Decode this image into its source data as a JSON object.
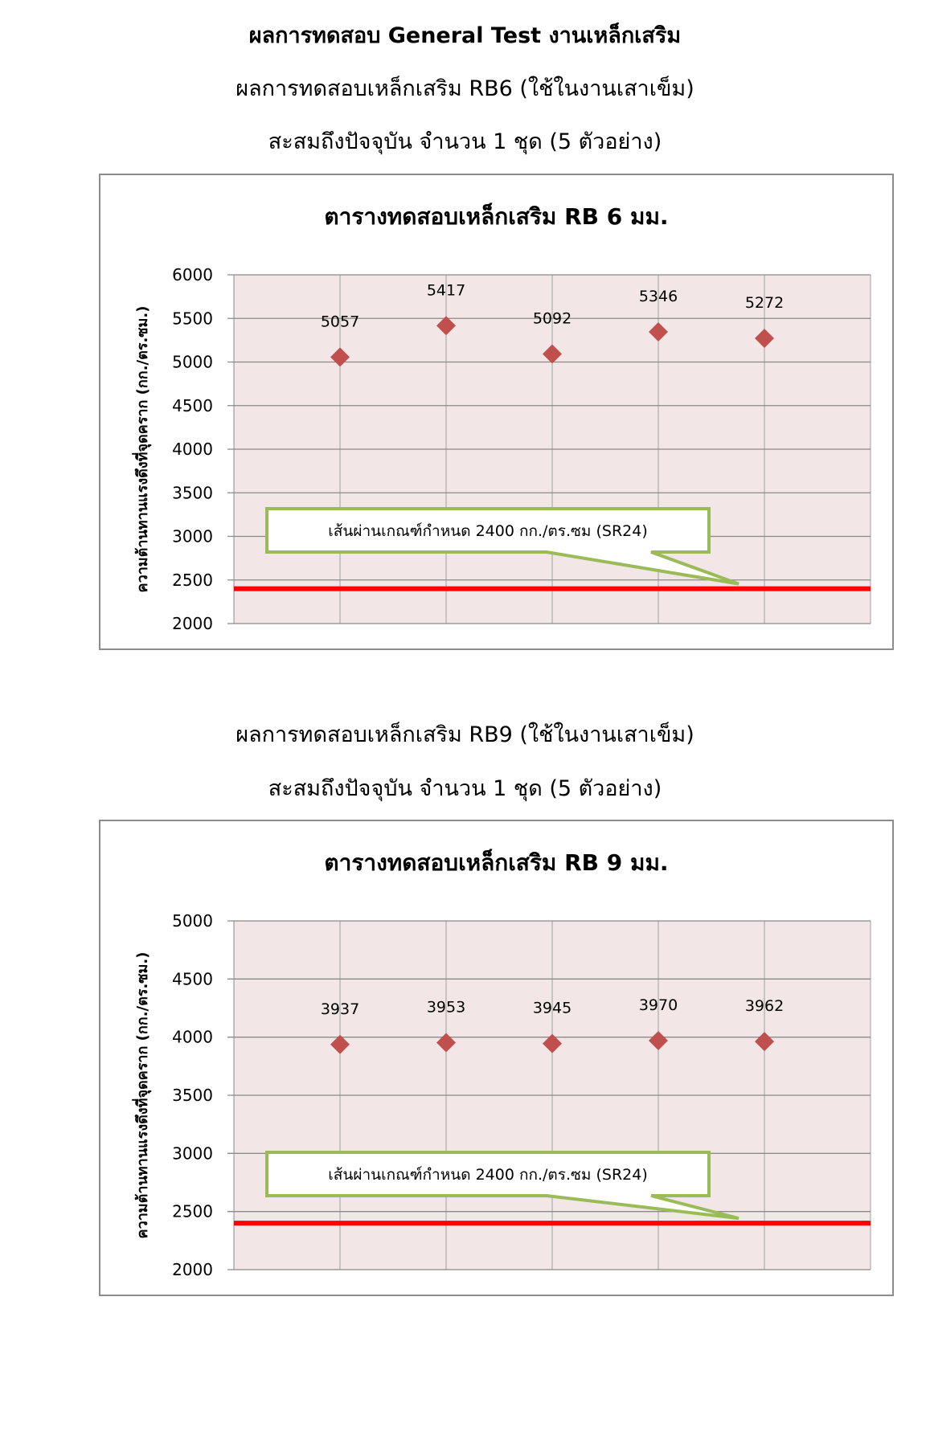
{
  "header": {
    "title": "ผลการทดสอบ General Test งานเหล็กเสริม"
  },
  "sections": [
    {
      "subtitle": "ผลการทดสอบเหล็กเสริม RB6 (ใช้ในงานเสาเข็ม)",
      "summary": "สะสมถึงปัจจุบัน จำนวน 1 ชุด (5 ตัวอย่าง)"
    },
    {
      "subtitle": "ผลการทดสอบเหล็กเสริม RB9 (ใช้ในงานเสาเข็ม)",
      "summary": "สะสมถึงปัจจุบัน จำนวน 1 ชุด (5 ตัวอย่าง)"
    }
  ],
  "chart_data": [
    {
      "type": "scatter",
      "title": "ตารางทดสอบเหล็กเสริม RB 6 มม.",
      "ylabel": "ความต้านทานแรงดึงที่จุดคราก (กก./ตร.ซม.)",
      "xlabel": "",
      "x": [
        1,
        2,
        3,
        4,
        5
      ],
      "values": [
        5057,
        5417,
        5092,
        5346,
        5272
      ],
      "data_labels": [
        "5057",
        "5417",
        "5092",
        "5346",
        "5272"
      ],
      "ylim": [
        2000,
        6000
      ],
      "yticks": [
        "2000",
        "2500",
        "3000",
        "3500",
        "4000",
        "4500",
        "5000",
        "5500",
        "6000"
      ],
      "grid": true,
      "threshold": {
        "value": 2400,
        "color": "#ff0000"
      },
      "annotation": "เส้นผ่านเกณฑ์กำหนด 2400 กก./ตร.ซม (SR24)",
      "colors": {
        "marker": "#c0504d",
        "plot_bg": "#f2e6e6",
        "callout_border": "#9bbb59"
      }
    },
    {
      "type": "scatter",
      "title": "ตารางทดสอบเหล็กเสริม RB 9 มม.",
      "ylabel": "ความต้านทานแรงดึงที่จุดคราก (กก./ตร.ซม.)",
      "xlabel": "",
      "x": [
        1,
        2,
        3,
        4,
        5
      ],
      "values": [
        3937,
        3953,
        3945,
        3970,
        3962
      ],
      "data_labels": [
        "3937",
        "3953",
        "3945",
        "3970",
        "3962"
      ],
      "ylim": [
        2000,
        5000
      ],
      "yticks": [
        "2000",
        "2500",
        "3000",
        "3500",
        "4000",
        "4500",
        "5000"
      ],
      "grid": true,
      "threshold": {
        "value": 2400,
        "color": "#ff0000"
      },
      "annotation": "เส้นผ่านเกณฑ์กำหนด 2400 กก./ตร.ซม (SR24)",
      "colors": {
        "marker": "#c0504d",
        "plot_bg": "#f2e6e6",
        "callout_border": "#9bbb59"
      }
    }
  ]
}
